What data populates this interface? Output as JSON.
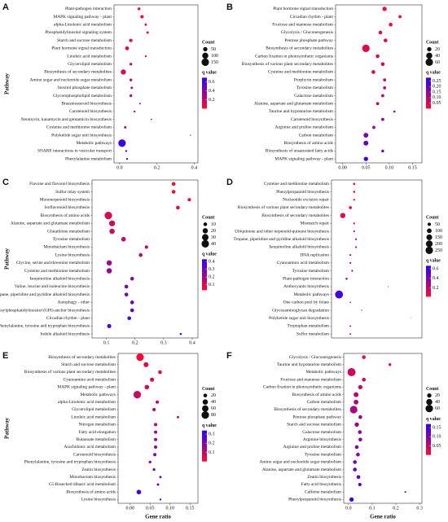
{
  "chart_data": [
    {
      "type": "scatter",
      "panel": "A",
      "ylabel": "Pathway",
      "categories": [
        "Plant-pathogen interaction",
        "MAPK signaling pathway - plant",
        "alpha-Linolenic acid metabolism",
        "Phosphatidylinositol signaling system",
        "Starch and sucrose metabolism",
        "Plant hormone signal transduction",
        "Linoleic acid metabolism",
        "Glycerolipid metabolism",
        "Biosynthesis of secondary metabolites",
        "Amino sugar and nucleotide sugar metabolism",
        "Inositol phosphate metabolism",
        "Glycerophospholipid metabolism",
        "Brassinosteroid biosynthesis",
        "Carotenoid biosynthesis",
        "Neomycin, kanamycin and gentamicin biosynthesis",
        "Cysteine and methionine metabolism",
        "Polyketide sugar unit biosynthesis",
        "Metabolic pathways",
        "SNARE interactions in vesicular transport",
        "Phenylalanine metabolism"
      ],
      "values": [
        0.104,
        0.12,
        0.14,
        0.15,
        0.06,
        0.04,
        0.14,
        0.06,
        0.02,
        0.06,
        0.065,
        0.06,
        0.11,
        0.08,
        0.17,
        0.03,
        0.38,
        0.013,
        0.035,
        0.04
      ],
      "counts": [
        20,
        30,
        15,
        15,
        30,
        40,
        10,
        20,
        70,
        20,
        15,
        20,
        8,
        10,
        5,
        15,
        3,
        150,
        10,
        10
      ],
      "qvalues": [
        0.02,
        0.03,
        0.05,
        0.06,
        0.1,
        0.1,
        0.12,
        0.15,
        0.12,
        0.2,
        0.2,
        0.22,
        0.25,
        0.3,
        0.4,
        0.35,
        0.55,
        0.65,
        0.6,
        0.65
      ],
      "xlim": [
        -0.03,
        0.42
      ],
      "xticks": [
        {
          "value": 0,
          "label": "0.0"
        },
        0.2,
        0.4
      ],
      "size_title": "Count",
      "size_ticks": [
        50,
        100,
        150
      ],
      "color_title": "q value",
      "clim": [
        0.0,
        0.7
      ],
      "color_ticks": [
        0.6,
        0.4,
        0.2
      ],
      "colors": [
        "#ff0a2a",
        "#2b00ff"
      ]
    },
    {
      "type": "scatter",
      "panel": "B",
      "categories": [
        "Plant hormone signal transduction",
        "Circadian rhythm - plant",
        "Fructose and mannose metabolism",
        "Glycolysis / Gluconeogenesis",
        "Pentose phosphate pathway",
        "Biosynthesis of secondary metabolites",
        "Carbon fixation in photosynthetic organisms",
        "Biosynthesis of various plant secondary metabolites",
        "Cysteine and methionine metabolism",
        "Porphyrin metabolism",
        "Tyrosine metabolism",
        "Galactose metabolism",
        "Alanine, aspartate and glutamate metabolism",
        "Taurine and hypotaurine metabolism",
        "Carotenoid biosynthesis",
        "Arginine and proline metabolism",
        "Carbon metabolism",
        "Biosynthesis of amino acids",
        "Biosynthesis of unsaturated fatty acids",
        "MAPK signaling pathway - plant"
      ],
      "values": [
        0.09,
        0.123,
        0.103,
        0.081,
        0.092,
        0.05,
        0.075,
        0.086,
        0.066,
        0.09,
        0.09,
        0.086,
        0.075,
        0.111,
        0.086,
        0.067,
        0.05,
        0.05,
        0.086,
        0.05
      ],
      "counts": [
        20,
        10,
        15,
        15,
        15,
        60,
        15,
        15,
        15,
        10,
        10,
        10,
        10,
        5,
        10,
        10,
        25,
        25,
        8,
        20
      ],
      "qvalues": [
        0.01,
        0.02,
        0.02,
        0.03,
        0.03,
        0.04,
        0.04,
        0.05,
        0.06,
        0.07,
        0.08,
        0.1,
        0.1,
        0.12,
        0.14,
        0.15,
        0.18,
        0.2,
        0.22,
        0.26
      ],
      "xlim": [
        -0.015,
        0.17
      ],
      "xticks": [
        {
          "value": 0,
          "label": "0.00"
        },
        0.05,
        {
          "value": 0.1,
          "label": "0.10"
        },
        0.15
      ],
      "size_title": "Count",
      "size_ticks": [
        20,
        40,
        60
      ],
      "color_title": "q value",
      "clim": [
        0.0,
        0.28
      ],
      "color_ticks": [
        0.25,
        {
          "value": 0.2,
          "label": "0.20"
        },
        0.15,
        {
          "value": 0.1,
          "label": "0.10"
        },
        0.05
      ],
      "colors": [
        "#ff0a2a",
        "#2b00ff"
      ]
    },
    {
      "type": "scatter",
      "panel": "C",
      "ylabel": "Pathway",
      "categories": [
        "Flavone and flavonol biosynthesis",
        "Sulfur relay system",
        "Monoterpenoid biosynthesis",
        "Isoflavonoid biosynthesis",
        "Biosynthesis of amino acids",
        "Alanine, aspartate and glutamate metabolism",
        "Glutathione metabolism",
        "Tyrosine metabolism",
        "Monobactam biosynthesis",
        "Lysine biosynthesis",
        "Glycine, serine and threonine metabolism",
        "Cysteine and methionine metabolism",
        "Isoquinoline alkaloid biosynthesis",
        "Valine, leucine and isoleucine biosynthesis",
        "Tropane, piperidine and pyridine alkaloid biosynthesis",
        "Autophagy - other",
        "Glycosylphosphatidylinositol (GPI)-anchor biosynthesis",
        "Circadian rhythm - plant",
        "Phenylalanine, tyrosine and tryptophan biosynthesis",
        "Indole alkaloid biosynthesis"
      ],
      "values": [
        0.335,
        0.335,
        0.39,
        0.35,
        0.107,
        0.12,
        0.12,
        0.16,
        0.24,
        0.22,
        0.11,
        0.11,
        0.19,
        0.17,
        0.17,
        0.19,
        0.19,
        0.18,
        0.11,
        0.36
      ],
      "counts": [
        10,
        10,
        8,
        10,
        40,
        25,
        20,
        15,
        8,
        10,
        20,
        20,
        10,
        10,
        10,
        10,
        10,
        10,
        12,
        3
      ],
      "qvalues": [
        0.05,
        0.06,
        0.06,
        0.08,
        0.1,
        0.12,
        0.12,
        0.14,
        0.15,
        0.16,
        0.2,
        0.22,
        0.25,
        0.28,
        0.3,
        0.3,
        0.32,
        0.35,
        0.38,
        0.4
      ],
      "xlim": [
        0.05,
        0.42
      ],
      "xticks": [
        0.1,
        0.2,
        0.3,
        0.4
      ],
      "size_title": "Count",
      "size_ticks": [
        10,
        20,
        30,
        40
      ],
      "color_title": "q value",
      "clim": [
        0.03,
        0.43
      ],
      "color_ticks": [
        0.4,
        0.3,
        0.2,
        0.1
      ],
      "colors": [
        "#ff0a2a",
        "#2b00ff"
      ]
    },
    {
      "type": "scatter",
      "panel": "D",
      "categories": [
        "Cysteine and methionine metabolism",
        "Phenylpropanoid biosynthesis",
        "Nucleotide excision repair",
        "Biosynthesis of various plant secondary metabolites",
        "Biosynthesis of secondary metabolites",
        "Mismatch repair",
        "Ubiquinone and other terpenoid-quinone biosynthesis",
        "Tropane, piperidine and pyridine alkaloid biosynthesis",
        "Isoquinoline alkaloid biosynthesis",
        "DNA replication",
        "Cyanoamino acid metabolism",
        "Tyrosine metabolism",
        "Plant-pathogen interaction",
        "Anthocyanin biosynthesis",
        "Metabolic pathways",
        "One carbon pool by folate",
        "Glycosaminoglycan degradation",
        "Polyketide sugar unit biosynthesis",
        "Tryptophan metabolism",
        "Sulfur metabolism"
      ],
      "values": [
        0.08,
        0.08,
        0.08,
        0.07,
        0.05,
        0.08,
        0.08,
        0.085,
        0.085,
        0.07,
        0.07,
        0.075,
        0.06,
        0.17,
        0.04,
        0.07,
        0.1,
        0.23,
        0.07,
        0.07
      ],
      "counts": [
        20,
        20,
        15,
        40,
        120,
        15,
        15,
        15,
        15,
        15,
        15,
        15,
        20,
        3,
        280,
        8,
        5,
        2,
        10,
        10
      ],
      "qvalues": [
        0.05,
        0.06,
        0.08,
        0.08,
        0.1,
        0.12,
        0.15,
        0.18,
        0.2,
        0.2,
        0.22,
        0.25,
        0.25,
        0.3,
        0.6,
        0.3,
        0.35,
        0.5,
        0.4,
        0.4
      ],
      "xlim": [
        0.02,
        0.26
      ],
      "size_title": "Count",
      "size_ticks": [
        50,
        100,
        150,
        200,
        250
      ],
      "color_title": "q value",
      "clim": [
        0.02,
        0.66
      ],
      "color_ticks": [
        0.6,
        0.4,
        0.2
      ],
      "colors": [
        "#ff0a2a",
        "#2b00ff"
      ]
    },
    {
      "type": "scatter",
      "panel": "E",
      "ylabel": "Pathway",
      "xlabel": "Gene ratio",
      "categories": [
        "Biosynthesis of secondary metabolites",
        "Starch and sucrose metabolism",
        "Biosynthesis of various plant secondary metabolites",
        "Cyanoamino acid metabolism",
        "MAPK signaling pathway - plant",
        "Metabolic pathways",
        "alpha-Linolenic acid metabolism",
        "Glycerolipid metabolism",
        "Linoleic acid metabolism",
        "Nitrogen metabolism",
        "Fatty acid elongation",
        "Butanoate metabolism",
        "Arachidonic acid metabolism",
        "Carotenoid biosynthesis",
        "Phenylalanine, tyrosine and tryptophan biosynthesis",
        "Zeatin biosynthesis",
        "Monobactam biosynthesis",
        "C5-Branched dibasic acid metabolism",
        "Biosynthesis of amino acids",
        "Lysine biosynthesis"
      ],
      "values": [
        0.025,
        0.04,
        0.075,
        0.055,
        0.042,
        0.018,
        0.068,
        0.06,
        0.12,
        0.064,
        0.064,
        0.064,
        0.064,
        0.062,
        0.05,
        0.06,
        0.076,
        0.07,
        0.022,
        0.076
      ],
      "counts": [
        80,
        35,
        20,
        25,
        30,
        80,
        15,
        15,
        8,
        15,
        15,
        15,
        15,
        15,
        10,
        10,
        8,
        8,
        30,
        5
      ],
      "qvalues": [
        0.02,
        0.04,
        0.05,
        0.06,
        0.07,
        0.08,
        0.1,
        0.12,
        0.12,
        0.14,
        0.15,
        0.16,
        0.18,
        0.2,
        0.22,
        0.24,
        0.25,
        0.28,
        0.3,
        0.32
      ],
      "xlim": [
        -0.03,
        0.17
      ],
      "xticks": [
        {
          "value": 0,
          "label": "0.00"
        },
        0.05,
        {
          "value": 0.1,
          "label": "0.10"
        },
        0.15
      ],
      "size_title": "Count",
      "size_ticks": [
        20,
        40,
        60,
        80
      ],
      "color_title": "q value",
      "clim": [
        0.0,
        0.34
      ],
      "color_ticks": [
        0.3,
        0.2,
        0.1
      ],
      "colors": [
        "#ff0a2a",
        "#2b00ff"
      ]
    },
    {
      "type": "scatter",
      "panel": "F",
      "xlabel": "Gene ratio",
      "categories": [
        "Glycolysis / Gluconeogenesis",
        "Taurine and hypotaurine metabolism",
        "Metabolic pathways",
        "Fructose and mannose metabolism",
        "Carbon fixation in photosynthetic organisms",
        "Biosynthesis of amino acids",
        "Carbon metabolism",
        "Biosynthesis of secondary metabolites",
        "Pentose phosphate pathway",
        "Starch and sucrose metabolism",
        "Galactose metabolism",
        "Arginine biosynthesis",
        "Arginine and proline metabolism",
        "Tyrosine metabolism",
        "Amino sugar and nucleotide sugar metabolism",
        "Alanine, aspartate and glutamate metabolism",
        "Zeatin biosynthesis",
        "Fatty acid biosynthesis",
        "Caffeine metabolism",
        "Phenylpropanoid biosynthesis"
      ],
      "values": [
        0.065,
        0.175,
        0.013,
        0.065,
        0.05,
        0.032,
        0.032,
        0.022,
        0.05,
        0.035,
        0.048,
        0.05,
        0.035,
        0.04,
        0.027,
        0.027,
        0.042,
        0.048,
        0.24,
        0.013
      ],
      "counts": [
        15,
        8,
        70,
        15,
        20,
        25,
        25,
        60,
        15,
        20,
        15,
        15,
        15,
        15,
        15,
        15,
        15,
        12,
        3,
        20
      ],
      "qvalues": [
        0.02,
        0.03,
        0.04,
        0.04,
        0.05,
        0.06,
        0.06,
        0.07,
        0.08,
        0.08,
        0.09,
        0.09,
        0.1,
        0.1,
        0.11,
        0.12,
        0.13,
        0.14,
        0.15,
        0.16
      ],
      "xlim": [
        -0.02,
        0.31
      ],
      "xticks": [
        {
          "value": 0,
          "label": "0.0"
        },
        0.1,
        0.2,
        0.3
      ],
      "size_title": "Count",
      "size_ticks": [
        20,
        40,
        60
      ],
      "color_title": "q value",
      "clim": [
        0.0,
        0.17
      ],
      "color_ticks": [
        0.15,
        {
          "value": 0.1,
          "label": "0.10"
        },
        0.05
      ],
      "colors": [
        "#ff0a2a",
        "#2b00ff"
      ]
    }
  ]
}
